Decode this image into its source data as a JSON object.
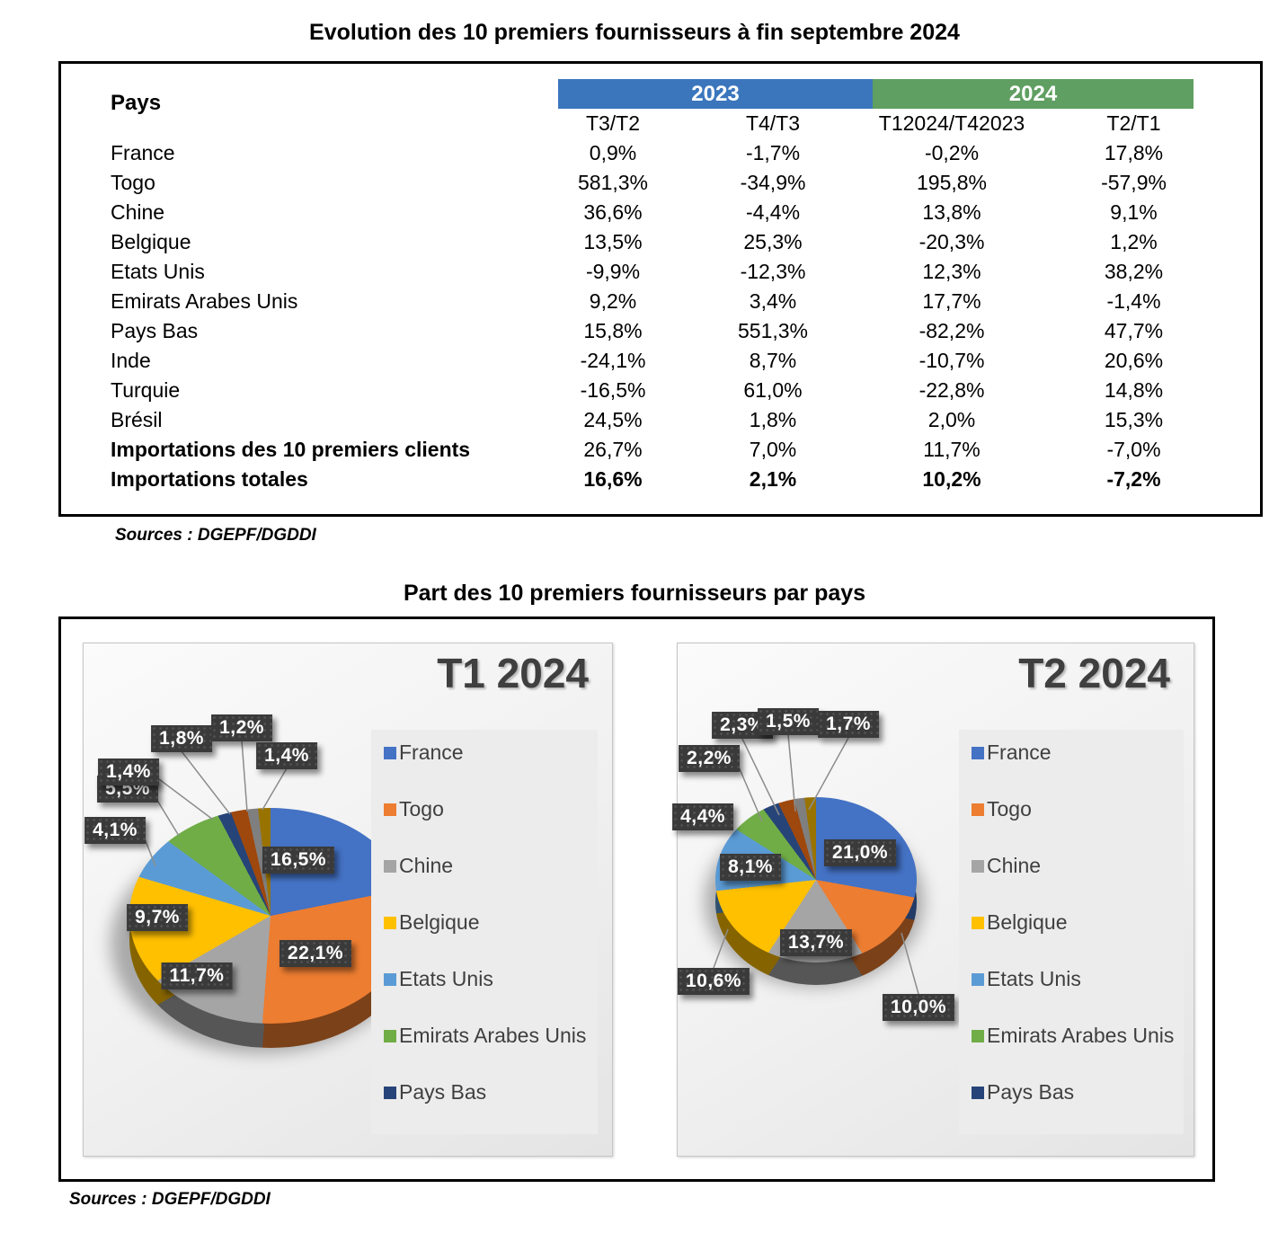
{
  "page": {
    "title1": "Evolution des 10 premiers fournisseurs à fin septembre 2024",
    "title2": "Part des 10 premiers fournisseurs par pays",
    "sources_table": "Sources : DGEPF/DGDDI",
    "sources_charts": "Sources : DGEPF/DGDDI"
  },
  "table": {
    "corner_label": "Pays",
    "year_groups": [
      {
        "label": "2023",
        "color": "#3B76BD"
      },
      {
        "label": "2024",
        "color": "#5F9F61"
      }
    ],
    "columns": [
      "T3/T2",
      "T4/T3",
      "T12024/T42023",
      "T2/T1"
    ],
    "rows": [
      {
        "label": "France",
        "values": [
          "0,9%",
          "-1,7%",
          "-0,2%",
          "17,8%"
        ],
        "bold_label": false,
        "bold_values": false
      },
      {
        "label": "Togo",
        "values": [
          "581,3%",
          "-34,9%",
          "195,8%",
          "-57,9%"
        ],
        "bold_label": false,
        "bold_values": false
      },
      {
        "label": "Chine",
        "values": [
          "36,6%",
          "-4,4%",
          "13,8%",
          "9,1%"
        ],
        "bold_label": false,
        "bold_values": false
      },
      {
        "label": "Belgique",
        "values": [
          "13,5%",
          "25,3%",
          "-20,3%",
          "1,2%"
        ],
        "bold_label": false,
        "bold_values": false
      },
      {
        "label": "Etats Unis",
        "values": [
          "-9,9%",
          "-12,3%",
          "12,3%",
          "38,2%"
        ],
        "bold_label": false,
        "bold_values": false
      },
      {
        "label": "Emirats Arabes Unis",
        "values": [
          "9,2%",
          "3,4%",
          "17,7%",
          "-1,4%"
        ],
        "bold_label": false,
        "bold_values": false
      },
      {
        "label": "Pays Bas",
        "values": [
          "15,8%",
          "551,3%",
          "-82,2%",
          "47,7%"
        ],
        "bold_label": false,
        "bold_values": false
      },
      {
        "label": "Inde",
        "values": [
          "-24,1%",
          "8,7%",
          "-10,7%",
          "20,6%"
        ],
        "bold_label": false,
        "bold_values": false
      },
      {
        "label": "Turquie",
        "values": [
          "-16,5%",
          "61,0%",
          "-22,8%",
          "14,8%"
        ],
        "bold_label": false,
        "bold_values": false
      },
      {
        "label": "Brésil",
        "values": [
          "24,5%",
          "1,8%",
          "2,0%",
          "15,3%"
        ],
        "bold_label": false,
        "bold_values": false
      },
      {
        "label": "Importations des 10 premiers clients",
        "values": [
          "26,7%",
          "7,0%",
          "11,7%",
          "-7,0%"
        ],
        "bold_label": true,
        "bold_values": false
      },
      {
        "label": "Importations totales",
        "values": [
          "16,6%",
          "2,1%",
          "10,2%",
          "-7,2%"
        ],
        "bold_label": true,
        "bold_values": true
      }
    ]
  },
  "chart_data": [
    {
      "type": "pie",
      "title": "T1 2024",
      "unit": "%",
      "categories": [
        "France",
        "Togo",
        "Chine",
        "Belgique",
        "Etats Unis",
        "Emirats Arabes Unis",
        "Pays Bas",
        "Inde",
        "Turquie",
        "Brésil"
      ],
      "values": [
        16.5,
        22.1,
        11.7,
        9.7,
        4.1,
        5.5,
        1.4,
        1.8,
        1.2,
        1.4
      ],
      "point_labels": [
        "16,5%",
        "22,1%",
        "11,7%",
        "9,7%",
        "4,1%",
        "5,5%",
        "1,4%",
        "1,8%",
        "1,2%",
        "1,4%"
      ],
      "colors": [
        "#4472C4",
        "#ED7D31",
        "#A5A5A5",
        "#FFC000",
        "#5B9BD5",
        "#70AD47",
        "#264478",
        "#9E480E",
        "#7F7F7F",
        "#997300"
      ],
      "legend_entries": [
        "France",
        "Togo",
        "Chine",
        "Belgique",
        "Etats Unis",
        "Emirats Arabes Unis",
        "Pays Bas"
      ],
      "legend_position": "right",
      "start_angle_deg": 0,
      "direction": "clockwise",
      "style": "3d"
    },
    {
      "type": "pie",
      "title": "T2 2024",
      "unit": "%",
      "categories": [
        "France",
        "Togo",
        "Chine",
        "Belgique",
        "Etats Unis",
        "Emirats Arabes Unis",
        "Pays Bas",
        "Inde",
        "Turquie",
        "Brésil"
      ],
      "values": [
        21.0,
        10.0,
        13.7,
        10.6,
        8.1,
        4.4,
        2.2,
        2.3,
        1.5,
        1.7
      ],
      "point_labels": [
        "21,0%",
        "10,0%",
        "13,7%",
        "10,6%",
        "8,1%",
        "4,4%",
        "2,2%",
        "2,3%",
        "1,5%",
        "1,7%"
      ],
      "colors": [
        "#4472C4",
        "#ED7D31",
        "#A5A5A5",
        "#FFC000",
        "#5B9BD5",
        "#70AD47",
        "#264478",
        "#9E480E",
        "#7F7F7F",
        "#997300"
      ],
      "legend_entries": [
        "France",
        "Togo",
        "Chine",
        "Belgique",
        "Etats Unis",
        "Emirats Arabes Unis",
        "Pays Bas"
      ],
      "legend_position": "right",
      "start_angle_deg": 0,
      "direction": "clockwise",
      "style": "3d"
    }
  ],
  "label_box_color": "#3A3A3A"
}
